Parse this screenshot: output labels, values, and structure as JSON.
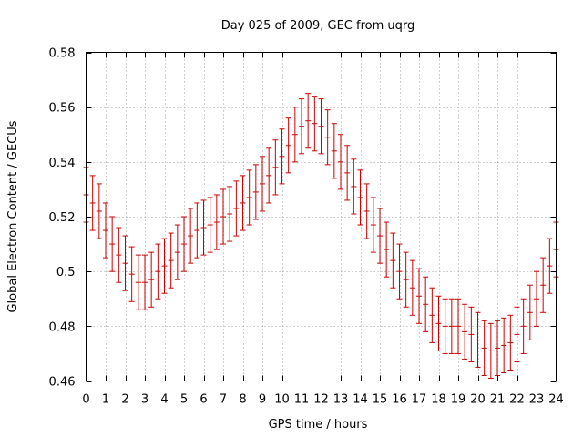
{
  "chart_data": {
    "type": "scatter",
    "title": "Day 025 of 2009, GEC from uqrg",
    "xlabel": "GPS time / hours",
    "ylabel": "Global Electron Content / GECUs",
    "xlim": [
      0,
      24
    ],
    "ylim": [
      0.46,
      0.58
    ],
    "xticks": [
      0,
      1,
      2,
      3,
      4,
      5,
      6,
      7,
      8,
      9,
      10,
      11,
      12,
      13,
      14,
      15,
      16,
      17,
      18,
      19,
      20,
      21,
      22,
      23,
      24
    ],
    "xtick_labels": [
      "0",
      "1",
      "2",
      "3",
      "4",
      "5",
      "6",
      "7",
      "8",
      "9",
      "10",
      "11",
      "12",
      "13",
      "14",
      "15",
      "16",
      "17",
      "18",
      "19",
      "20",
      "21",
      "22",
      "23",
      "24"
    ],
    "yticks": [
      0.46,
      0.48,
      0.5,
      0.52,
      0.54,
      0.56,
      0.58
    ],
    "ytick_labels": [
      "0.46",
      "0.48",
      "0.5",
      "0.52",
      "0.54",
      "0.56",
      "0.58"
    ],
    "grid": true,
    "series": [
      {
        "name": "GEC",
        "color": "#cc0000",
        "error": 0.01,
        "x": [
          0,
          0.333,
          0.667,
          1,
          1.333,
          1.667,
          2,
          2.333,
          2.667,
          3,
          3.333,
          3.667,
          4,
          4.333,
          4.667,
          5,
          5.333,
          5.667,
          6,
          6.333,
          6.667,
          7,
          7.333,
          7.667,
          8,
          8.333,
          8.667,
          9,
          9.333,
          9.667,
          10,
          10.333,
          10.667,
          11,
          11.333,
          11.667,
          12,
          12.333,
          12.667,
          13,
          13.333,
          13.667,
          14,
          14.333,
          14.667,
          15,
          15.333,
          15.667,
          16,
          16.333,
          16.667,
          17,
          17.333,
          17.667,
          18,
          18.333,
          18.667,
          19,
          19.333,
          19.667,
          20,
          20.333,
          20.667,
          21,
          21.333,
          21.667,
          22,
          22.333,
          22.667,
          23,
          23.333,
          23.667,
          24
        ],
        "y": [
          0.528,
          0.525,
          0.522,
          0.515,
          0.51,
          0.506,
          0.503,
          0.499,
          0.496,
          0.496,
          0.497,
          0.5,
          0.502,
          0.504,
          0.507,
          0.51,
          0.513,
          0.515,
          0.516,
          0.517,
          0.518,
          0.52,
          0.521,
          0.523,
          0.525,
          0.527,
          0.529,
          0.532,
          0.535,
          0.538,
          0.542,
          0.546,
          0.55,
          0.553,
          0.555,
          0.554,
          0.553,
          0.549,
          0.544,
          0.54,
          0.536,
          0.531,
          0.527,
          0.522,
          0.517,
          0.513,
          0.508,
          0.504,
          0.5,
          0.497,
          0.494,
          0.491,
          0.488,
          0.484,
          0.481,
          0.48,
          0.48,
          0.48,
          0.478,
          0.477,
          0.475,
          0.472,
          0.471,
          0.472,
          0.473,
          0.474,
          0.477,
          0.48,
          0.485,
          0.49,
          0.495,
          0.502,
          0.508
        ]
      }
    ]
  }
}
